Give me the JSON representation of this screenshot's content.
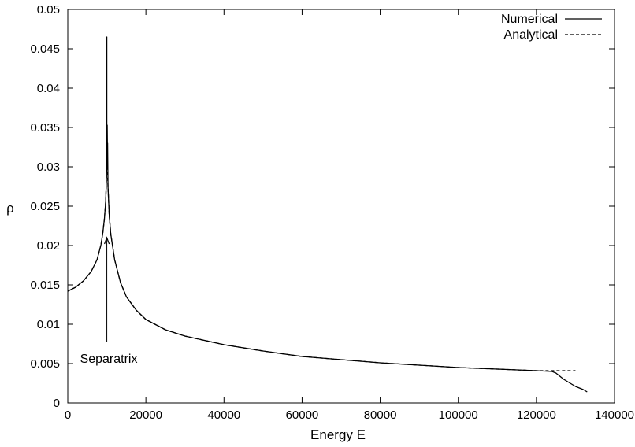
{
  "chart_data": {
    "type": "line",
    "title": "",
    "xlabel": "Energy E",
    "ylabel": "ρ",
    "xlim": [
      0,
      140000
    ],
    "ylim": [
      0,
      0.05
    ],
    "xticks": [
      {
        "value": 0,
        "label": "0"
      },
      {
        "value": 20000,
        "label": "20000"
      },
      {
        "value": 40000,
        "label": "40000"
      },
      {
        "value": 60000,
        "label": "60000"
      },
      {
        "value": 80000,
        "label": "80000"
      },
      {
        "value": 100000,
        "label": "100000"
      },
      {
        "value": 120000,
        "label": "120000"
      },
      {
        "value": 140000,
        "label": "140000"
      }
    ],
    "yticks": [
      {
        "value": 0,
        "label": "0"
      },
      {
        "value": 0.005,
        "label": "0.005"
      },
      {
        "value": 0.01,
        "label": "0.01"
      },
      {
        "value": 0.015,
        "label": "0.015"
      },
      {
        "value": 0.02,
        "label": "0.02"
      },
      {
        "value": 0.025,
        "label": "0.025"
      },
      {
        "value": 0.03,
        "label": "0.03"
      },
      {
        "value": 0.035,
        "label": "0.035"
      },
      {
        "value": 0.04,
        "label": "0.04"
      },
      {
        "value": 0.045,
        "label": "0.045"
      },
      {
        "value": 0.05,
        "label": "0.05"
      }
    ],
    "grid": false,
    "legend_position": "top-right",
    "series": [
      {
        "name": "Numerical",
        "style": "solid",
        "x": [
          0,
          2000,
          4000,
          6000,
          7500,
          8500,
          9000,
          9400,
          9700,
          9900,
          10000,
          10000,
          10000,
          10000,
          10100,
          10100,
          10200,
          10200,
          10300,
          10600,
          11000,
          12000,
          13500,
          15000,
          17500,
          20000,
          25000,
          30000,
          40000,
          50000,
          60000,
          70000,
          80000,
          90000,
          100000,
          110000,
          120000,
          124000,
          125000,
          126000,
          127000,
          128000,
          129000,
          130000,
          131000,
          132000,
          133000
        ],
        "y": [
          0.0142,
          0.0147,
          0.0155,
          0.0167,
          0.0182,
          0.0201,
          0.0217,
          0.0235,
          0.0255,
          0.0285,
          0.0307,
          0.0465,
          0.0365,
          0.0307,
          0.0302,
          0.0353,
          0.03,
          0.033,
          0.0275,
          0.024,
          0.0215,
          0.0182,
          0.0153,
          0.0135,
          0.0118,
          0.0106,
          0.0093,
          0.0085,
          0.0074,
          0.0066,
          0.0059,
          0.0055,
          0.0051,
          0.0048,
          0.0045,
          0.0043,
          0.0041,
          0.004,
          0.0038,
          0.0034,
          0.003,
          0.0027,
          0.0024,
          0.0021,
          0.0019,
          0.0017,
          0.0014
        ]
      },
      {
        "name": "Analytical",
        "style": "dashed",
        "x": [
          0,
          2000,
          4000,
          6000,
          7500,
          8500,
          9000,
          9400,
          9700,
          9900,
          10000,
          10100,
          10300,
          10600,
          11000,
          12000,
          13500,
          15000,
          17500,
          20000,
          25000,
          30000,
          40000,
          50000,
          60000,
          70000,
          80000,
          90000,
          100000,
          110000,
          120000,
          124000,
          127000,
          130000
        ],
        "y": [
          0.0142,
          0.0147,
          0.0155,
          0.0167,
          0.0182,
          0.0201,
          0.0217,
          0.0235,
          0.0255,
          0.0285,
          0.0307,
          0.03,
          0.0275,
          0.024,
          0.0215,
          0.0182,
          0.0153,
          0.0135,
          0.0118,
          0.0106,
          0.0093,
          0.0085,
          0.0074,
          0.0066,
          0.0059,
          0.0055,
          0.0051,
          0.0048,
          0.0045,
          0.0043,
          0.0041,
          0.0041,
          0.0041,
          0.0041
        ]
      }
    ],
    "annotations": [
      {
        "text": "Separatrix",
        "x": 10000,
        "y": 0.0075,
        "arrow_to": [
          10000,
          0.021
        ]
      }
    ]
  }
}
